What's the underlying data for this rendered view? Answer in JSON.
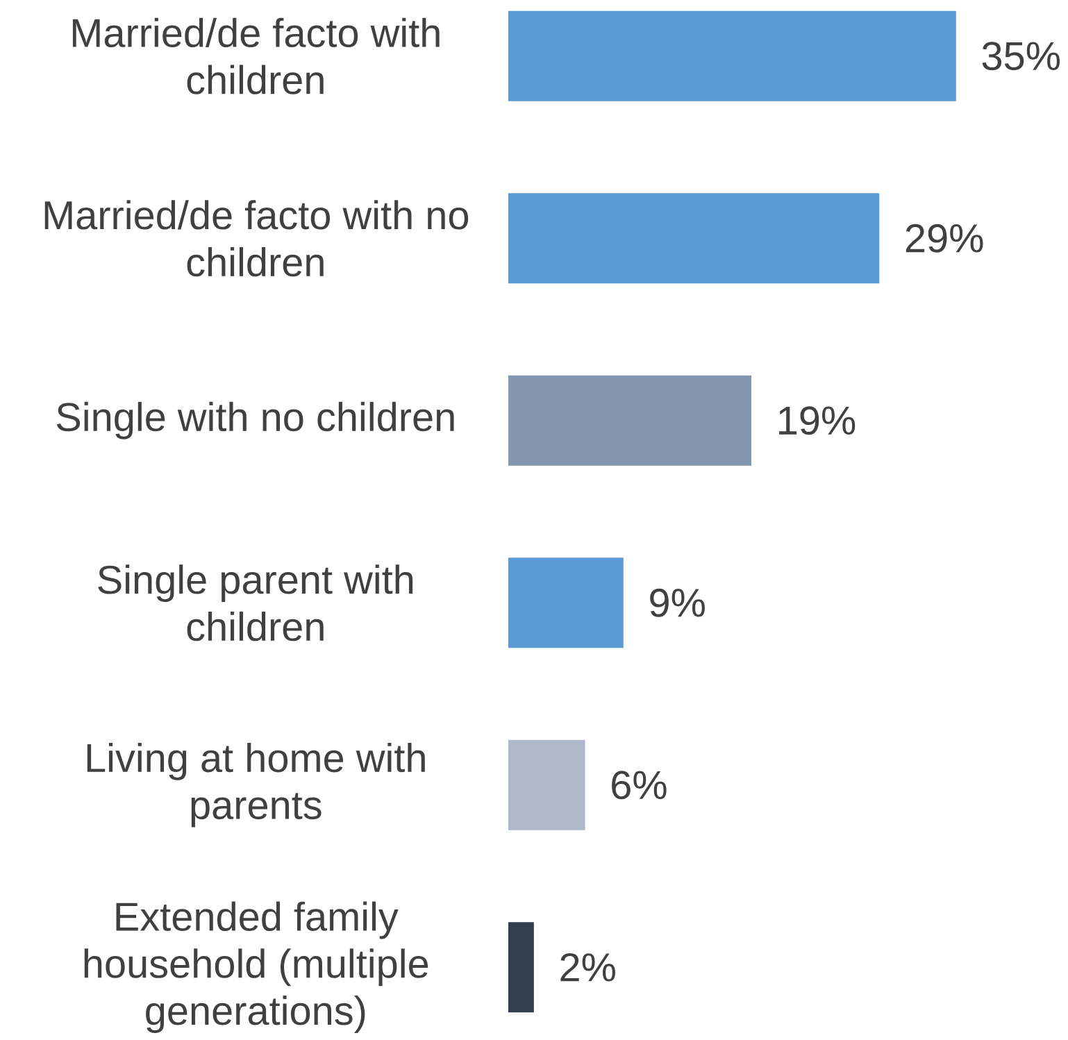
{
  "chart_data": {
    "type": "bar",
    "orientation": "horizontal",
    "categories": [
      "Married/de facto with children",
      "Married/de facto with no children",
      "Single with no children",
      "Single parent with children",
      "Living at home with parents",
      "Extended family household (multiple generations)"
    ],
    "values": [
      35,
      29,
      19,
      9,
      6,
      2
    ],
    "colors": [
      "#5b9bd5",
      "#5b9bd5",
      "#8497b0",
      "#5b9bd5",
      "#adb9ca",
      "#323f4f"
    ],
    "value_labels": [
      "35%",
      "29%",
      "19%",
      "9%",
      "6%",
      "2%"
    ]
  }
}
